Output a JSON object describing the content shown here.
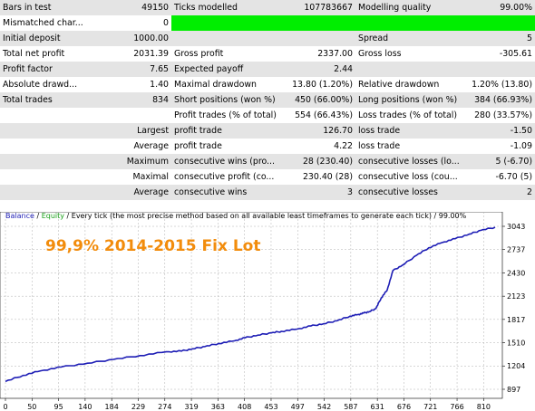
{
  "report": {
    "rows": [
      [
        "Bars in test",
        "49150",
        "Ticks modelled",
        "107783667",
        "Modelling quality",
        "99.00%"
      ],
      [
        "Mismatched char...",
        "0",
        "",
        "",
        "",
        ""
      ],
      [
        "Initial deposit",
        "1000.00",
        "",
        "",
        "Spread",
        "5"
      ],
      [
        "Total net profit",
        "2031.39",
        "Gross profit",
        "2337.00",
        "Gross loss",
        "-305.61"
      ],
      [
        "Profit factor",
        "7.65",
        "Expected payoff",
        "2.44",
        "",
        ""
      ],
      [
        "Absolute drawd...",
        "1.40",
        "Maximal drawdown",
        "13.80 (1.20%)",
        "Relative drawdown",
        "1.20% (13.80)"
      ],
      [
        "Total trades",
        "834",
        "Short positions (won %)",
        "450 (66.00%)",
        "Long positions (won %)",
        "384 (66.93%)"
      ],
      [
        "",
        "",
        "Profit trades (% of total)",
        "554 (66.43%)",
        "Loss trades (% of total)",
        "280 (33.57%)"
      ],
      [
        "",
        "Largest",
        "profit trade",
        "126.70",
        "loss trade",
        "-1.50"
      ],
      [
        "",
        "Average",
        "profit trade",
        "4.22",
        "loss trade",
        "-1.09"
      ],
      [
        "",
        "Maximum",
        "consecutive wins (pro...",
        "28 (230.40)",
        "consecutive losses (lo...",
        "5 (-6.70)"
      ],
      [
        "",
        "Maximal",
        "consecutive profit (co...",
        "230.40 (28)",
        "consecutive loss (cou...",
        "-6.70 (5)"
      ],
      [
        "",
        "Average",
        "consecutive wins",
        "3",
        "consecutive losses",
        "2"
      ]
    ],
    "quality_bar_color": "#00ee00"
  },
  "chart_header": {
    "balance": "Balance",
    "sep1": " / ",
    "equity": "Equity",
    "rest": " / Every tick (the most precise method based on all available least timeframes to generate each tick) / 99.00%"
  },
  "overlay_title": "99,9% 2014-2015 Fix Lot",
  "chart_data": {
    "type": "line",
    "title": "",
    "x_ticks": [
      "0",
      "50",
      "95",
      "140",
      "184",
      "229",
      "274",
      "319",
      "363",
      "408",
      "453",
      "497",
      "542",
      "587",
      "631",
      "676",
      "721",
      "766",
      "810"
    ],
    "y_ticks": [
      "897",
      "1204",
      "1510",
      "1817",
      "2123",
      "2430",
      "2737",
      "3043"
    ],
    "ylim": [
      897,
      3043
    ],
    "xlim": [
      0,
      834
    ],
    "series": [
      {
        "name": "Balance",
        "color": "#1d1db5",
        "x": [
          0,
          30,
          60,
          95,
          140,
          184,
          229,
          274,
          300,
          319,
          340,
          363,
          390,
          408,
          430,
          453,
          470,
          497,
          520,
          542,
          565,
          587,
          600,
          610,
          620,
          631,
          640,
          650,
          660,
          676,
          700,
          721,
          744,
          766,
          790,
          810,
          834
        ],
        "y": [
          1000,
          1080,
          1140,
          1190,
          1240,
          1290,
          1340,
          1390,
          1400,
          1430,
          1460,
          1500,
          1535,
          1575,
          1610,
          1640,
          1660,
          1690,
          1730,
          1760,
          1800,
          1860,
          1880,
          1900,
          1920,
          1960,
          2100,
          2200,
          2460,
          2530,
          2660,
          2760,
          2830,
          2880,
          2940,
          2990,
          3031
        ]
      }
    ]
  }
}
